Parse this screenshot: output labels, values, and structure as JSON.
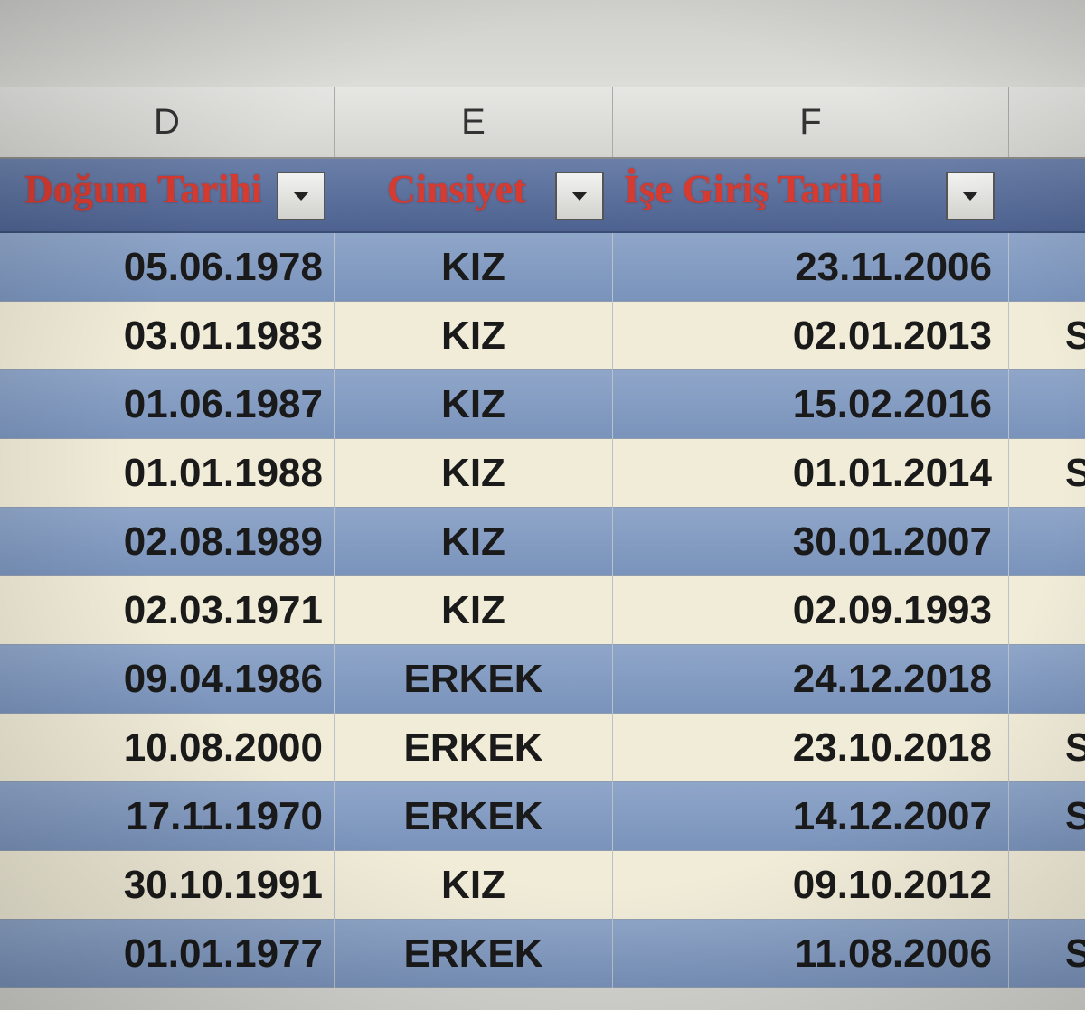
{
  "columns": {
    "d": "D",
    "e": "E",
    "f": "F"
  },
  "headers": {
    "birth_date": "Doğum Tarihi",
    "gender": "Cinsiyet",
    "start_date": "İşe Giriş Tarihi"
  },
  "rows": [
    {
      "birth_date": "05.06.1978",
      "gender": "KIZ",
      "start_date": "23.11.2006",
      "extra": ""
    },
    {
      "birth_date": "03.01.1983",
      "gender": "KIZ",
      "start_date": "02.01.2013",
      "extra": "S"
    },
    {
      "birth_date": "01.06.1987",
      "gender": "KIZ",
      "start_date": "15.02.2016",
      "extra": ""
    },
    {
      "birth_date": "01.01.1988",
      "gender": "KIZ",
      "start_date": "01.01.2014",
      "extra": "S"
    },
    {
      "birth_date": "02.08.1989",
      "gender": "KIZ",
      "start_date": "30.01.2007",
      "extra": ""
    },
    {
      "birth_date": "02.03.1971",
      "gender": "KIZ",
      "start_date": "02.09.1993",
      "extra": ""
    },
    {
      "birth_date": "09.04.1986",
      "gender": "ERKEK",
      "start_date": "24.12.2018",
      "extra": ""
    },
    {
      "birth_date": "10.08.2000",
      "gender": "ERKEK",
      "start_date": "23.10.2018",
      "extra": "S"
    },
    {
      "birth_date": "17.11.1970",
      "gender": "ERKEK",
      "start_date": "14.12.2007",
      "extra": "S"
    },
    {
      "birth_date": "30.10.1991",
      "gender": "KIZ",
      "start_date": "09.10.2012",
      "extra": ""
    },
    {
      "birth_date": "01.01.1977",
      "gender": "ERKEK",
      "start_date": "11.08.2006",
      "extra": "S"
    }
  ],
  "icons": {
    "filter": "dropdown-arrow-icon"
  },
  "colors": {
    "header_text": "#d73a2e",
    "band_row": "#8fa6c9",
    "plain_row": "#f1ecd8"
  }
}
